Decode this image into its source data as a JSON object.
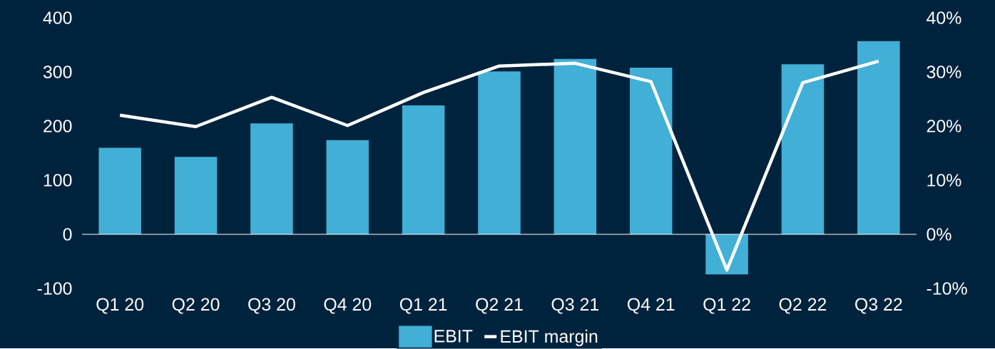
{
  "chart_data": {
    "type": "bar",
    "categories": [
      "Q1 20",
      "Q2 20",
      "Q3 20",
      "Q4 20",
      "Q1 21",
      "Q2 21",
      "Q3 21",
      "Q4 21",
      "Q1 22",
      "Q2 22",
      "Q3 22"
    ],
    "series": [
      {
        "name": "EBIT",
        "color": "#41afd6",
        "values": [
          160,
          143,
          205,
          174,
          238,
          301,
          324,
          308,
          -74,
          314,
          357
        ]
      },
      {
        "name": "EBIT margin",
        "type": "line",
        "axis": "y2",
        "color": "#ffffff",
        "values": [
          22.0,
          19.9,
          25.3,
          20.1,
          26.2,
          31.1,
          31.6,
          28.2,
          -6.6,
          28.0,
          32.0
        ]
      }
    ],
    "ylim": [
      -100,
      400
    ],
    "yticks": [
      -100,
      0,
      100,
      200,
      300,
      400
    ],
    "y2lim": [
      -10,
      40
    ],
    "y2ticks": [
      {
        "value": -10,
        "label": "-10%"
      },
      {
        "value": 0,
        "label": "0%"
      },
      {
        "value": 10,
        "label": "10%"
      },
      {
        "value": 20,
        "label": "20%"
      },
      {
        "value": 30,
        "label": "30%"
      },
      {
        "value": 40,
        "label": "40%"
      }
    ],
    "ref_lines": [
      {
        "axis": "y",
        "value": 0,
        "color": "#ffffff"
      }
    ],
    "legend": "bottom",
    "marker": "none",
    "line_style": "solid"
  }
}
